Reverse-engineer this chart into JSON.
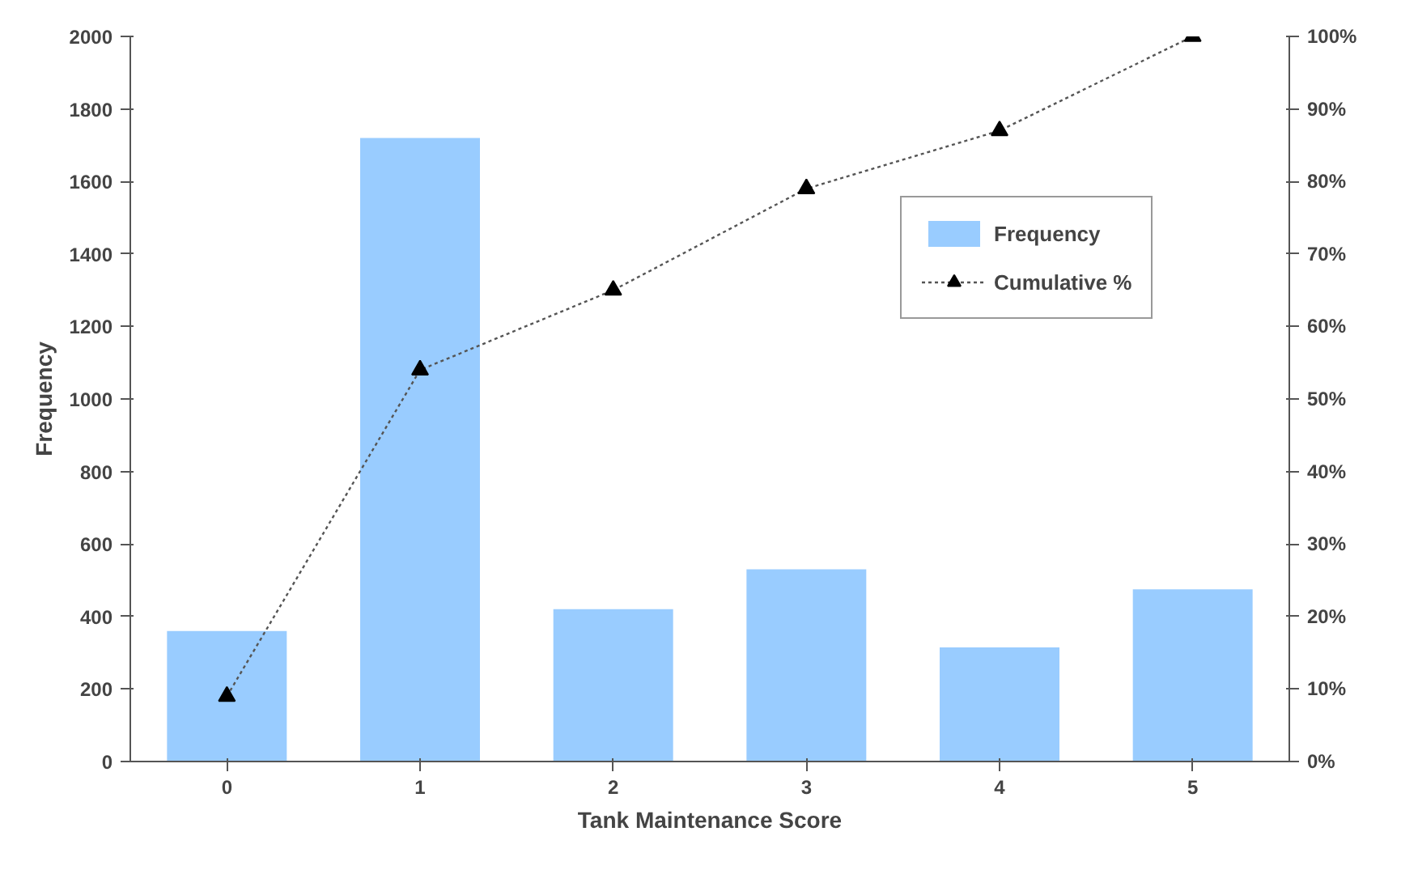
{
  "chart_data": {
    "type": "bar",
    "xlabel": "Tank Maintenance Score",
    "ylabel": "Frequency",
    "categories": [
      "0",
      "1",
      "2",
      "3",
      "4",
      "5"
    ],
    "series": [
      {
        "name": "Frequency",
        "color": "#99ccff",
        "values": [
          360,
          1720,
          420,
          530,
          315,
          475
        ]
      },
      {
        "name": "Cumulative %",
        "type": "line",
        "axis": "y2",
        "color": "#000000",
        "marker": "triangle",
        "line_style": "dotted",
        "values": [
          9,
          54,
          65,
          79,
          87,
          100
        ]
      }
    ],
    "ylim": [
      0,
      2000
    ],
    "yticks": [
      0,
      200,
      400,
      600,
      800,
      1000,
      1200,
      1400,
      1600,
      1800,
      2000
    ],
    "y2lim": [
      0,
      100
    ],
    "y2ticks": [
      {
        "value": 0,
        "label": "0%"
      },
      {
        "value": 10,
        "label": "10%"
      },
      {
        "value": 20,
        "label": "20%"
      },
      {
        "value": 30,
        "label": "30%"
      },
      {
        "value": 40,
        "label": "40%"
      },
      {
        "value": 50,
        "label": "50%"
      },
      {
        "value": 60,
        "label": "60%"
      },
      {
        "value": 70,
        "label": "70%"
      },
      {
        "value": 80,
        "label": "80%"
      },
      {
        "value": 90,
        "label": "90%"
      },
      {
        "value": 100,
        "label": "100%"
      }
    ],
    "legend": "top right",
    "grid": false
  }
}
